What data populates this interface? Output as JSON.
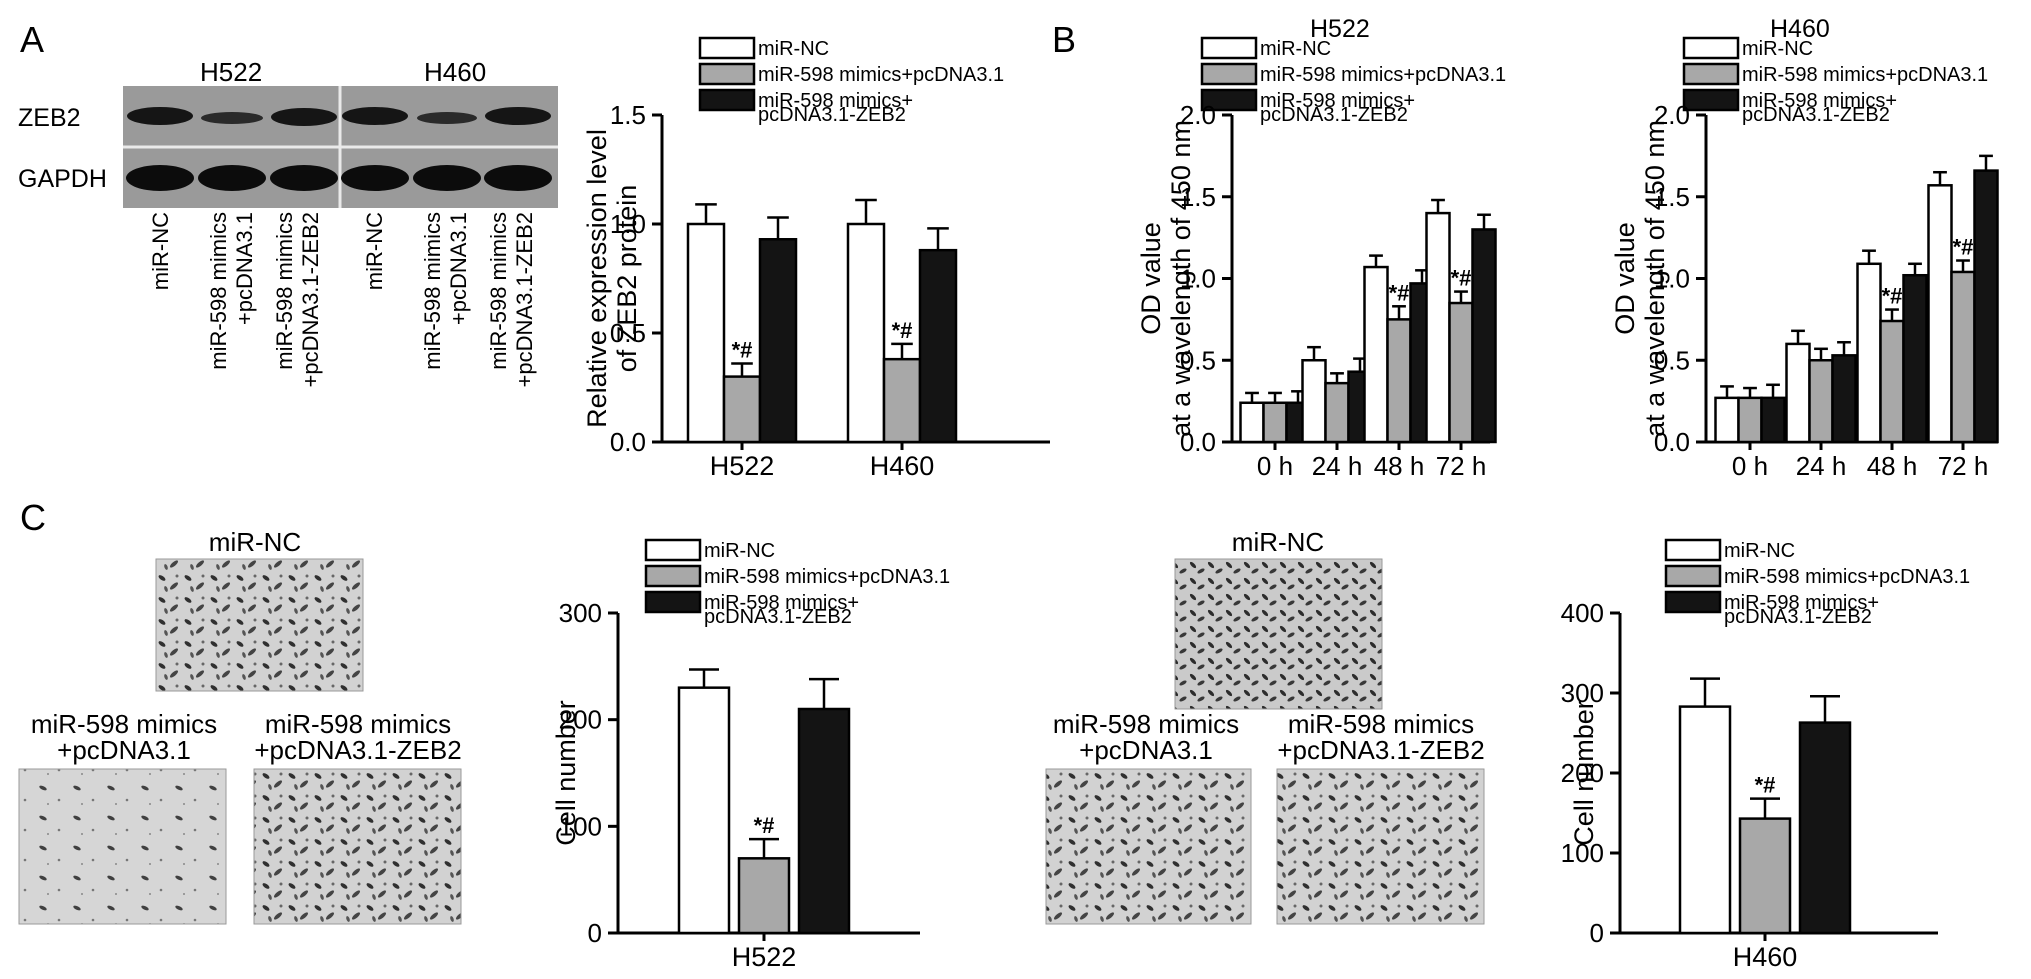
{
  "panels": {
    "a": "A",
    "b": "B",
    "c": "C"
  },
  "colors": {
    "miR-NC": "#ffffff",
    "mimics_pcDNA": "#a8a8a8",
    "mimics_ZEB2": "#141414"
  },
  "legend": {
    "nc": "miR-NC",
    "mimics": "miR-598 mimics+pcDNA3.1",
    "zeb2_line1": "miR-598 mimics+",
    "zeb2_line2": "pcDNA3.1-ZEB2"
  },
  "western": {
    "cell_lines": [
      "H522",
      "H460"
    ],
    "row_labels": [
      "ZEB2",
      "GAPDH"
    ],
    "lanes": [
      {
        "line1": "miR-NC",
        "line2": ""
      },
      {
        "line1": "miR-598 mimics",
        "line2": "+pcDNA3.1"
      },
      {
        "line1": "miR-598 mimics",
        "line2": "+pcDNA3.1-ZEB2"
      },
      {
        "line1": "miR-NC",
        "line2": ""
      },
      {
        "line1": "miR-598 mimics",
        "line2": "+pcDNA3.1"
      },
      {
        "line1": "miR-598 mimics",
        "line2": "+pcDNA3.1-ZEB2"
      }
    ]
  },
  "transwell": {
    "h522": {
      "nc": "miR-NC",
      "mimics_l1": "miR-598 mimics",
      "mimics_l2": "+pcDNA3.1",
      "zeb2_l1": "miR-598 mimics",
      "zeb2_l2": "+pcDNA3.1-ZEB2"
    },
    "h460": {
      "nc": "miR-NC",
      "mimics_l1": "miR-598 mimics",
      "mimics_l2": "+pcDNA3.1",
      "zeb2_l1": "miR-598 mimics",
      "zeb2_l2": "+pcDNA3.1-ZEB2"
    }
  },
  "significance_mark": "*#",
  "chart_data": [
    {
      "id": "A-bar",
      "type": "bar",
      "title": "",
      "xlabel": "",
      "ylabel_line1": "Relative expression level",
      "ylabel_line2": "of ZEB2 protein",
      "categories": [
        "H522",
        "H460"
      ],
      "ylim": [
        0,
        1.5
      ],
      "yticks": [
        "0.0",
        "0.5",
        "1.0",
        "1.5"
      ],
      "series": [
        {
          "name": "miR-NC",
          "values": [
            1.0,
            1.0
          ],
          "errors": [
            0.09,
            0.11
          ]
        },
        {
          "name": "miR-598 mimics+pcDNA3.1",
          "values": [
            0.3,
            0.38
          ],
          "errors": [
            0.06,
            0.07
          ],
          "significant": [
            true,
            true
          ]
        },
        {
          "name": "miR-598 mimics+pcDNA3.1-ZEB2",
          "values": [
            0.93,
            0.88
          ],
          "errors": [
            0.1,
            0.1
          ]
        }
      ]
    },
    {
      "id": "B-H522",
      "type": "bar",
      "title": "H522",
      "ylabel_line1": "OD value",
      "ylabel_line2": "at a wavelength of 450 nm",
      "categories": [
        "0 h",
        "24 h",
        "48 h",
        "72 h"
      ],
      "ylim": [
        0,
        2.0
      ],
      "yticks": [
        "0.0",
        "0.5",
        "1.0",
        "1.5",
        "2.0"
      ],
      "series": [
        {
          "name": "miR-NC",
          "values": [
            0.24,
            0.5,
            1.07,
            1.4
          ],
          "errors": [
            0.06,
            0.08,
            0.07,
            0.08
          ]
        },
        {
          "name": "miR-598 mimics+pcDNA3.1",
          "values": [
            0.24,
            0.36,
            0.75,
            0.85
          ],
          "errors": [
            0.06,
            0.06,
            0.08,
            0.07
          ],
          "significant": [
            false,
            false,
            true,
            true
          ]
        },
        {
          "name": "miR-598 mimics+pcDNA3.1-ZEB2",
          "values": [
            0.24,
            0.43,
            0.97,
            1.3
          ],
          "errors": [
            0.07,
            0.08,
            0.08,
            0.09
          ]
        }
      ]
    },
    {
      "id": "B-H460",
      "type": "bar",
      "title": "H460",
      "ylabel_line1": "OD value",
      "ylabel_line2": "at a wavelength of 450 nm",
      "categories": [
        "0 h",
        "24 h",
        "48 h",
        "72 h"
      ],
      "ylim": [
        0,
        2.0
      ],
      "yticks": [
        "0.0",
        "0.5",
        "1.0",
        "1.5",
        "2.0"
      ],
      "series": [
        {
          "name": "miR-NC",
          "values": [
            0.27,
            0.6,
            1.09,
            1.57
          ],
          "errors": [
            0.07,
            0.08,
            0.08,
            0.08
          ]
        },
        {
          "name": "miR-598 mimics+pcDNA3.1",
          "values": [
            0.27,
            0.5,
            0.74,
            1.04
          ],
          "errors": [
            0.06,
            0.07,
            0.07,
            0.07
          ],
          "significant": [
            false,
            false,
            true,
            true
          ]
        },
        {
          "name": "miR-598 mimics+pcDNA3.1-ZEB2",
          "values": [
            0.27,
            0.53,
            1.02,
            1.66
          ],
          "errors": [
            0.08,
            0.08,
            0.07,
            0.09
          ]
        }
      ]
    },
    {
      "id": "C-H522",
      "type": "bar",
      "title": "",
      "xlabel": "",
      "ylabel_line1": "Cell number",
      "ylabel_line2": "",
      "categories": [
        "H522"
      ],
      "ylim": [
        0,
        300
      ],
      "yticks": [
        "0",
        "100",
        "200",
        "300"
      ],
      "series": [
        {
          "name": "miR-NC",
          "values": [
            230
          ],
          "errors": [
            17
          ]
        },
        {
          "name": "miR-598 mimics+pcDNA3.1",
          "values": [
            70
          ],
          "errors": [
            18
          ],
          "significant": [
            true
          ]
        },
        {
          "name": "miR-598 mimics+pcDNA3.1-ZEB2",
          "values": [
            210
          ],
          "errors": [
            28
          ]
        }
      ]
    },
    {
      "id": "C-H460",
      "type": "bar",
      "title": "",
      "xlabel": "",
      "ylabel_line1": "Cell number",
      "ylabel_line2": "",
      "categories": [
        "H460"
      ],
      "ylim": [
        0,
        400
      ],
      "yticks": [
        "0",
        "100",
        "200",
        "300",
        "400"
      ],
      "series": [
        {
          "name": "miR-NC",
          "values": [
            283
          ],
          "errors": [
            35
          ]
        },
        {
          "name": "miR-598 mimics+pcDNA3.1",
          "values": [
            143
          ],
          "errors": [
            25
          ],
          "significant": [
            true
          ]
        },
        {
          "name": "miR-598 mimics+pcDNA3.1-ZEB2",
          "values": [
            263
          ],
          "errors": [
            33
          ]
        }
      ]
    }
  ]
}
